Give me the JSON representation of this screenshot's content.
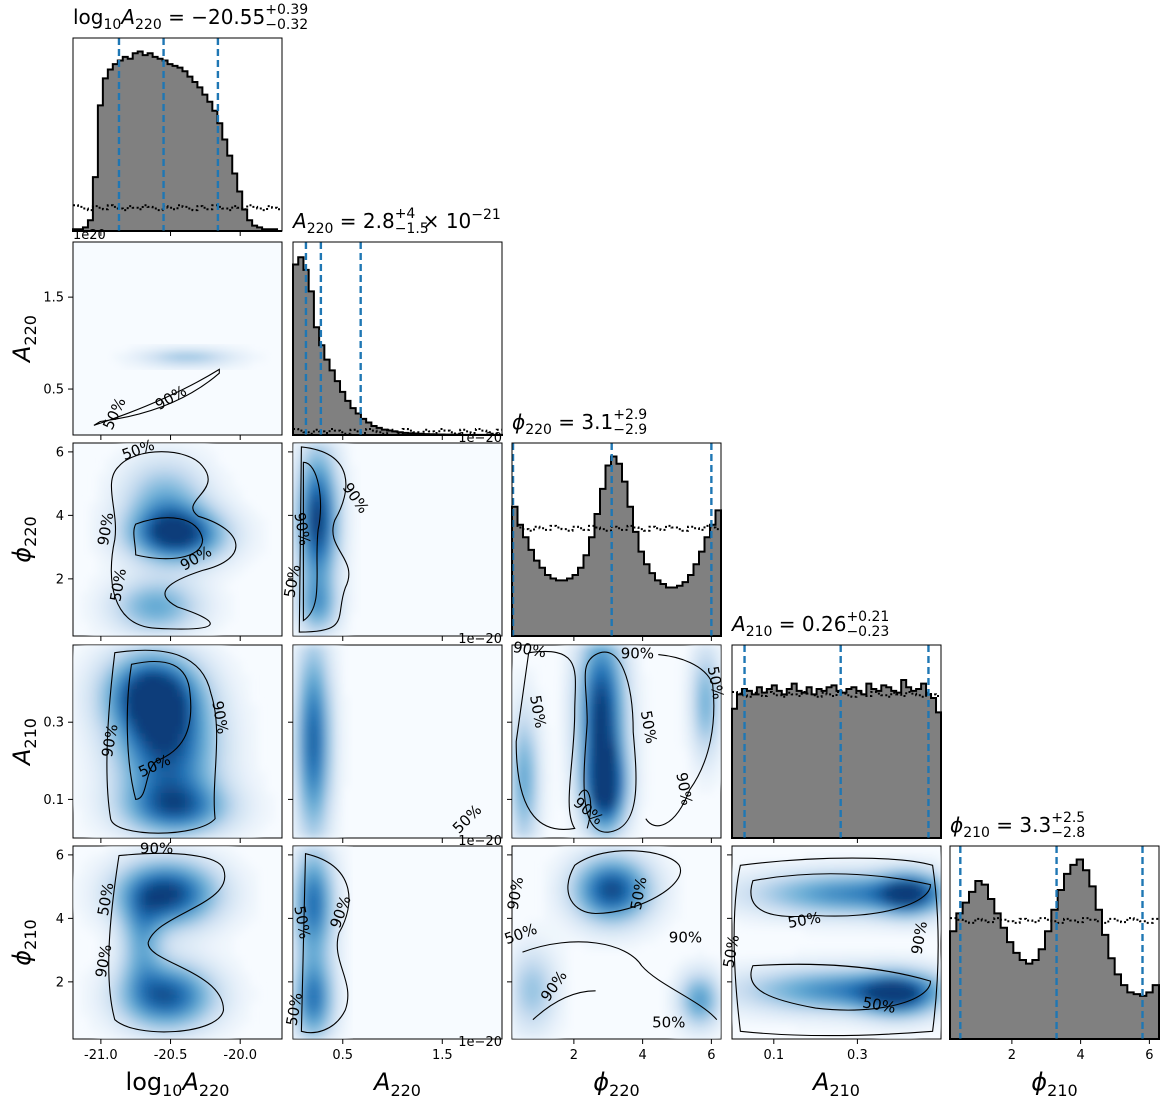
{
  "chart_data": {
    "type": "corner",
    "parameters": [
      {
        "key": "log10A220",
        "range": [
          -21.2,
          -19.7
        ],
        "ticks": [
          -21.0,
          -20.5,
          -20.0
        ],
        "tick_labels": [
          "-21.0",
          "-20.5",
          "-20.0"
        ],
        "title": {
          "base": "log",
          "sub1": "10",
          "mid": "A",
          "sub2": "220",
          "main": " = −20.55",
          "sup": "+0.39",
          "low": "−0.32"
        },
        "label": {
          "pre": "log",
          "pre_sub": "10",
          "sym": "A",
          "sub": "220"
        },
        "quantiles": [
          -20.87,
          -20.55,
          -20.16
        ]
      },
      {
        "key": "A220",
        "range": [
          0.0,
          2.1
        ],
        "ticks": [
          0.5,
          1.5
        ],
        "tick_labels": [
          "0.5",
          "1.5"
        ],
        "offset": "1e−20",
        "title": {
          "base": "",
          "sub1": "",
          "mid": "A",
          "sub2": "220",
          "main": " = 2.8",
          "sup": "+4",
          "low": "−1.5",
          "tail": " × 10",
          "tail_sup": "−21"
        },
        "label": {
          "pre": "",
          "pre_sub": "",
          "sym": "A",
          "sub": "220"
        },
        "quantiles": [
          0.13,
          0.28,
          0.68
        ]
      },
      {
        "key": "phi220",
        "range": [
          0.2,
          6.28
        ],
        "ticks": [
          2,
          4,
          6
        ],
        "tick_labels": [
          "2",
          "4",
          "6"
        ],
        "title": {
          "base": "",
          "sub1": "",
          "mid": "ϕ",
          "sub2": "220",
          "main": " = 3.1",
          "sup": "+2.9",
          "low": "−2.9"
        },
        "label": {
          "pre": "",
          "pre_sub": "",
          "sym": "ϕ",
          "sub": "220"
        },
        "quantiles": [
          0.23,
          3.1,
          6.0
        ]
      },
      {
        "key": "A210",
        "range": [
          0.0,
          0.5
        ],
        "ticks": [
          0.1,
          0.3
        ],
        "tick_labels": [
          "0.1",
          "0.3"
        ],
        "title": {
          "base": "",
          "sub1": "",
          "mid": "A",
          "sub2": "210",
          "main": " = 0.26",
          "sup": "+0.21",
          "low": "−0.23"
        },
        "label": {
          "pre": "",
          "pre_sub": "",
          "sym": "A",
          "sub": "210"
        },
        "quantiles": [
          0.03,
          0.26,
          0.47
        ]
      },
      {
        "key": "phi210",
        "range": [
          0.2,
          6.28
        ],
        "ticks": [
          2,
          4,
          6
        ],
        "tick_labels": [
          "2",
          "4",
          "6"
        ],
        "title": {
          "base": "",
          "sub1": "",
          "mid": "ϕ",
          "sub2": "210",
          "main": " = 3.3",
          "sup": "+2.5",
          "low": "−2.8"
        },
        "label": {
          "pre": "",
          "pre_sub": "",
          "sym": "ϕ",
          "sub": "210"
        },
        "quantiles": [
          0.5,
          3.3,
          5.8
        ]
      }
    ],
    "histograms": [
      {
        "param": "log10A220",
        "values": [
          0.01,
          0.01,
          0.02,
          0.06,
          0.3,
          0.7,
          0.85,
          0.9,
          0.93,
          0.95,
          0.97,
          0.96,
          0.99,
          1.0,
          0.98,
          0.99,
          0.97,
          0.96,
          0.95,
          0.93,
          0.92,
          0.91,
          0.89,
          0.86,
          0.83,
          0.8,
          0.76,
          0.72,
          0.67,
          0.6,
          0.51,
          0.42,
          0.32,
          0.22,
          0.12,
          0.06,
          0.03,
          0.02,
          0.01,
          0.01,
          0.01,
          0.0
        ],
        "prior_level": 0.13
      },
      {
        "param": "A220",
        "values": [
          0.95,
          0.99,
          0.92,
          0.8,
          0.6,
          0.5,
          0.42,
          0.36,
          0.3,
          0.24,
          0.19,
          0.15,
          0.12,
          0.09,
          0.07,
          0.05,
          0.04,
          0.03,
          0.025,
          0.02,
          0.015,
          0.012,
          0.01,
          0.008,
          0.006,
          0.005,
          0.004,
          0.003,
          0.003,
          0.002,
          0.002,
          0.002,
          0.001,
          0.001,
          0.001,
          0.001,
          0.001,
          0.001,
          0.001,
          0.001
        ],
        "prior_level": 0.02
      },
      {
        "param": "phi220",
        "values": [
          0.72,
          0.62,
          0.55,
          0.48,
          0.42,
          0.38,
          0.34,
          0.32,
          0.31,
          0.31,
          0.32,
          0.34,
          0.38,
          0.45,
          0.55,
          0.68,
          0.82,
          0.95,
          1.0,
          0.96,
          0.86,
          0.72,
          0.58,
          0.47,
          0.4,
          0.35,
          0.31,
          0.29,
          0.27,
          0.27,
          0.28,
          0.3,
          0.34,
          0.4,
          0.47,
          0.55,
          0.62,
          0.7
        ],
        "prior_level": 0.6
      },
      {
        "param": "A210",
        "values": [
          0.72,
          0.8,
          0.83,
          0.82,
          0.8,
          0.84,
          0.81,
          0.83,
          0.85,
          0.82,
          0.8,
          0.83,
          0.86,
          0.82,
          0.81,
          0.84,
          0.8,
          0.83,
          0.82,
          0.84,
          0.85,
          0.82,
          0.81,
          0.83,
          0.84,
          0.82,
          0.8,
          0.86,
          0.83,
          0.82,
          0.85,
          0.84,
          0.82,
          0.81,
          0.88,
          0.84,
          0.82,
          0.83,
          0.86,
          0.8,
          0.78,
          0.7
        ],
        "prior_level": 0.8
      },
      {
        "param": "phi210",
        "values": [
          0.6,
          0.7,
          0.76,
          0.82,
          0.88,
          0.86,
          0.78,
          0.7,
          0.62,
          0.54,
          0.48,
          0.44,
          0.42,
          0.44,
          0.5,
          0.6,
          0.72,
          0.83,
          0.92,
          0.97,
          1.0,
          0.94,
          0.85,
          0.72,
          0.58,
          0.45,
          0.36,
          0.3,
          0.26,
          0.25,
          0.24,
          0.26,
          0.3
        ],
        "prior_level": 0.66
      }
    ],
    "contour_levels": [
      "50%",
      "90%"
    ],
    "colormap": {
      "low": "#f7fbff",
      "high": "#08306b"
    },
    "hist_fill": "#808080",
    "quantile_color": "#1f77b4"
  }
}
